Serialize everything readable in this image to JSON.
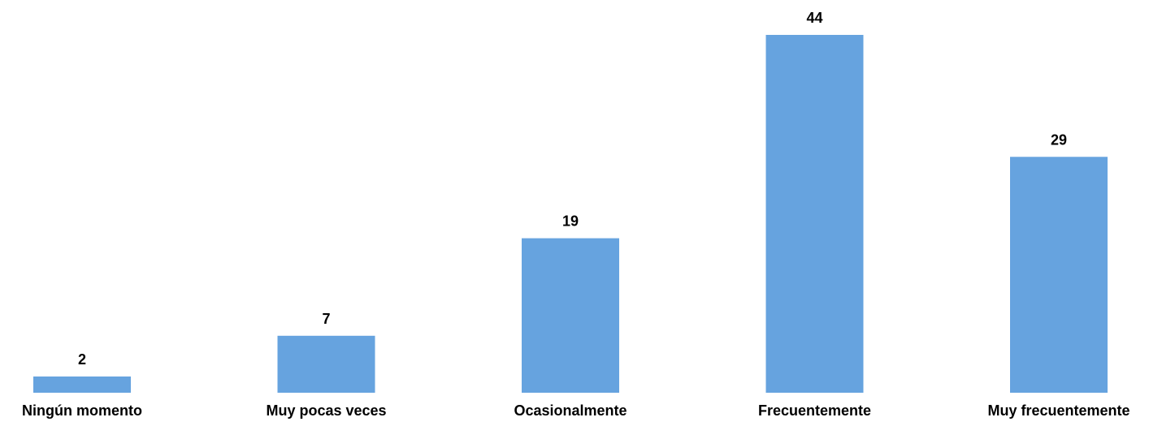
{
  "chart_data": {
    "type": "bar",
    "categories": [
      "Ningún momento",
      "Muy pocas veces",
      "Ocasionalmente",
      "Frecuentemente",
      "Muy frecuentemente"
    ],
    "values": [
      2,
      7,
      19,
      44,
      29
    ],
    "title": "",
    "xlabel": "",
    "ylabel": "",
    "ylim": [
      0,
      44
    ],
    "grid": false,
    "legend": "none",
    "bar_color": "#66A3DF",
    "data_labels": true
  }
}
